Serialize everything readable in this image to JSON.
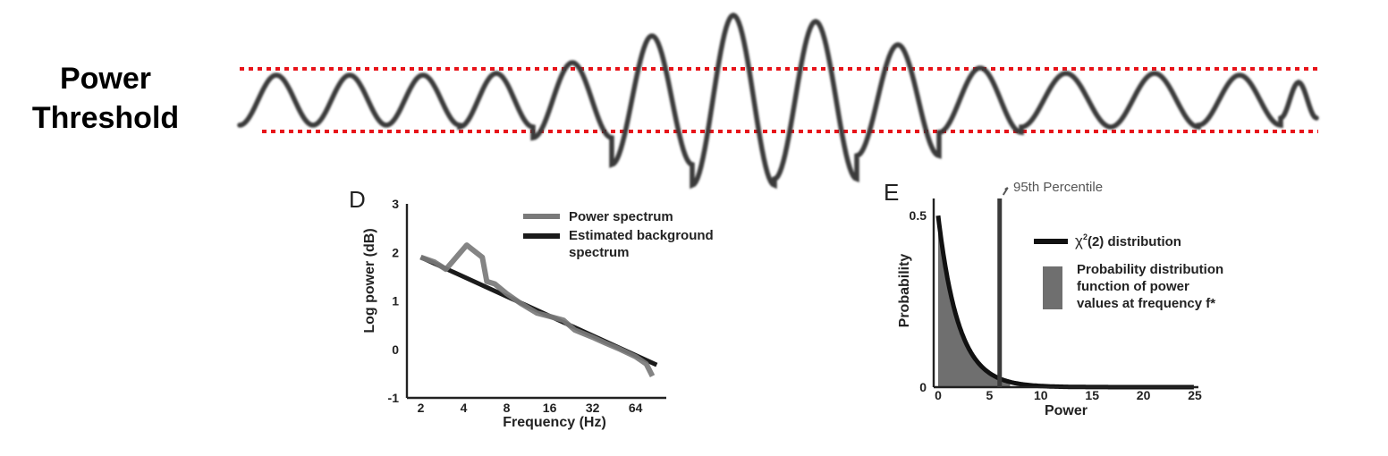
{
  "header": {
    "title_line1": "Power",
    "title_line2": "Threshold"
  },
  "colors": {
    "threshold": "#e8141a",
    "wave": "#3a3a3a",
    "spectrum": "#7a7a7a",
    "background_fit": "#1b1b1b",
    "histogram_fill": "#6f6f6f",
    "chi2": "#111111"
  },
  "chart_data": [
    {
      "type": "line",
      "panel": "waveform",
      "title": "",
      "description_of_series": "oscillating signal with threshold lines",
      "series": [
        {
          "samples_per_cycle_positions": [
            285,
            1475
          ],
          "cycles": [
            {
              "period": 82,
              "amp": 0.28
            },
            {
              "period": 82,
              "amp": 0.28
            },
            {
              "period": 82,
              "amp": 0.28
            },
            {
              "period": 82,
              "amp": 0.3
            },
            {
              "period": 88,
              "amp": 0.42
            },
            {
              "period": 90,
              "amp": 0.72
            },
            {
              "period": 92,
              "amp": 0.95
            },
            {
              "period": 92,
              "amp": 0.88
            },
            {
              "period": 92,
              "amp": 0.62
            },
            {
              "period": 92,
              "amp": 0.36
            },
            {
              "period": 100,
              "amp": 0.3
            },
            {
              "period": 98,
              "amp": 0.3
            },
            {
              "period": 92,
              "amp": 0.28
            },
            {
              "period": 40,
              "amp": 0.2
            }
          ]
        }
      ],
      "threshold_upper": 0.5,
      "threshold_lower": -0.5
    },
    {
      "type": "line",
      "panel": "D",
      "title": "",
      "xlabel": "Frequency (Hz)",
      "ylabel": "Log power (dB)",
      "x_scale": "log2",
      "x_ticks": [
        "2",
        "4",
        "8",
        "16",
        "32",
        "64"
      ],
      "x_tick_values": [
        2,
        4,
        8,
        16,
        32,
        64
      ],
      "xlim": [
        1.6,
        105
      ],
      "ylim": [
        -1,
        3
      ],
      "y_ticks": [
        "-1",
        "0",
        "1",
        "2",
        "3"
      ],
      "series": [
        {
          "name": "Power spectrum",
          "x": [
            2,
            2.5,
            3,
            4.2,
            5.4,
            5.8,
            6.6,
            8,
            10,
            13,
            16,
            20,
            24,
            32,
            40,
            50,
            64,
            76,
            84
          ],
          "y": [
            1.9,
            1.8,
            1.65,
            2.15,
            1.9,
            1.4,
            1.35,
            1.15,
            0.95,
            0.75,
            0.68,
            0.6,
            0.4,
            0.25,
            0.12,
            0.0,
            -0.15,
            -0.3,
            -0.55
          ]
        },
        {
          "name": "Estimated background spectrum",
          "x": [
            2,
            90
          ],
          "y": [
            1.9,
            -0.32
          ]
        }
      ],
      "legend": [
        "Power spectrum",
        "Estimated background\nspectrum"
      ],
      "legend_placement": "top-right"
    },
    {
      "type": "area",
      "panel": "E",
      "title": "",
      "xlabel": "Power",
      "ylabel": "Probability",
      "xlim": [
        0,
        25
      ],
      "ylim": [
        0,
        0.55
      ],
      "x_ticks": [
        "0",
        "5",
        "10",
        "15",
        "20",
        "25"
      ],
      "x_tick_values": [
        0,
        5,
        10,
        15,
        20,
        25
      ],
      "y_ticks": [
        "0",
        "0.5"
      ],
      "y_tick_values": [
        0,
        0.5
      ],
      "percentile_x": 5.99,
      "percentile_label": "95th Percentile",
      "series": [
        {
          "name": "χ²(2) distribution",
          "formula": "0.5*exp(-x/2)"
        },
        {
          "name": "Probability distribution function of power values at frequency f*",
          "fill": "histogram"
        }
      ],
      "legend": [
        {
          "label": "χ",
          "sup": "2",
          "rest": "(2) distribution"
        },
        {
          "label": "Probability distribution\nfunction of power\nvalues at frequency f*"
        }
      ],
      "legend_placement": "right"
    }
  ],
  "panels": {
    "d_label": "D",
    "e_label": "E",
    "d_legend_1": "Power spectrum",
    "d_legend_2a": "Estimated background",
    "d_legend_2b": "spectrum",
    "d_xlabel": "Frequency (Hz)",
    "d_ylabel": "Log power (dB)",
    "e_xlabel": "Power",
    "e_ylabel": "Probability",
    "e_percentile": "95th Percentile",
    "e_leg1_chi": "χ",
    "e_leg1_sup": "2",
    "e_leg1_rest": "(2) distribution",
    "e_leg2a": "Probability distribution",
    "e_leg2b": "function of power",
    "e_leg2c": "values at frequency f*"
  }
}
